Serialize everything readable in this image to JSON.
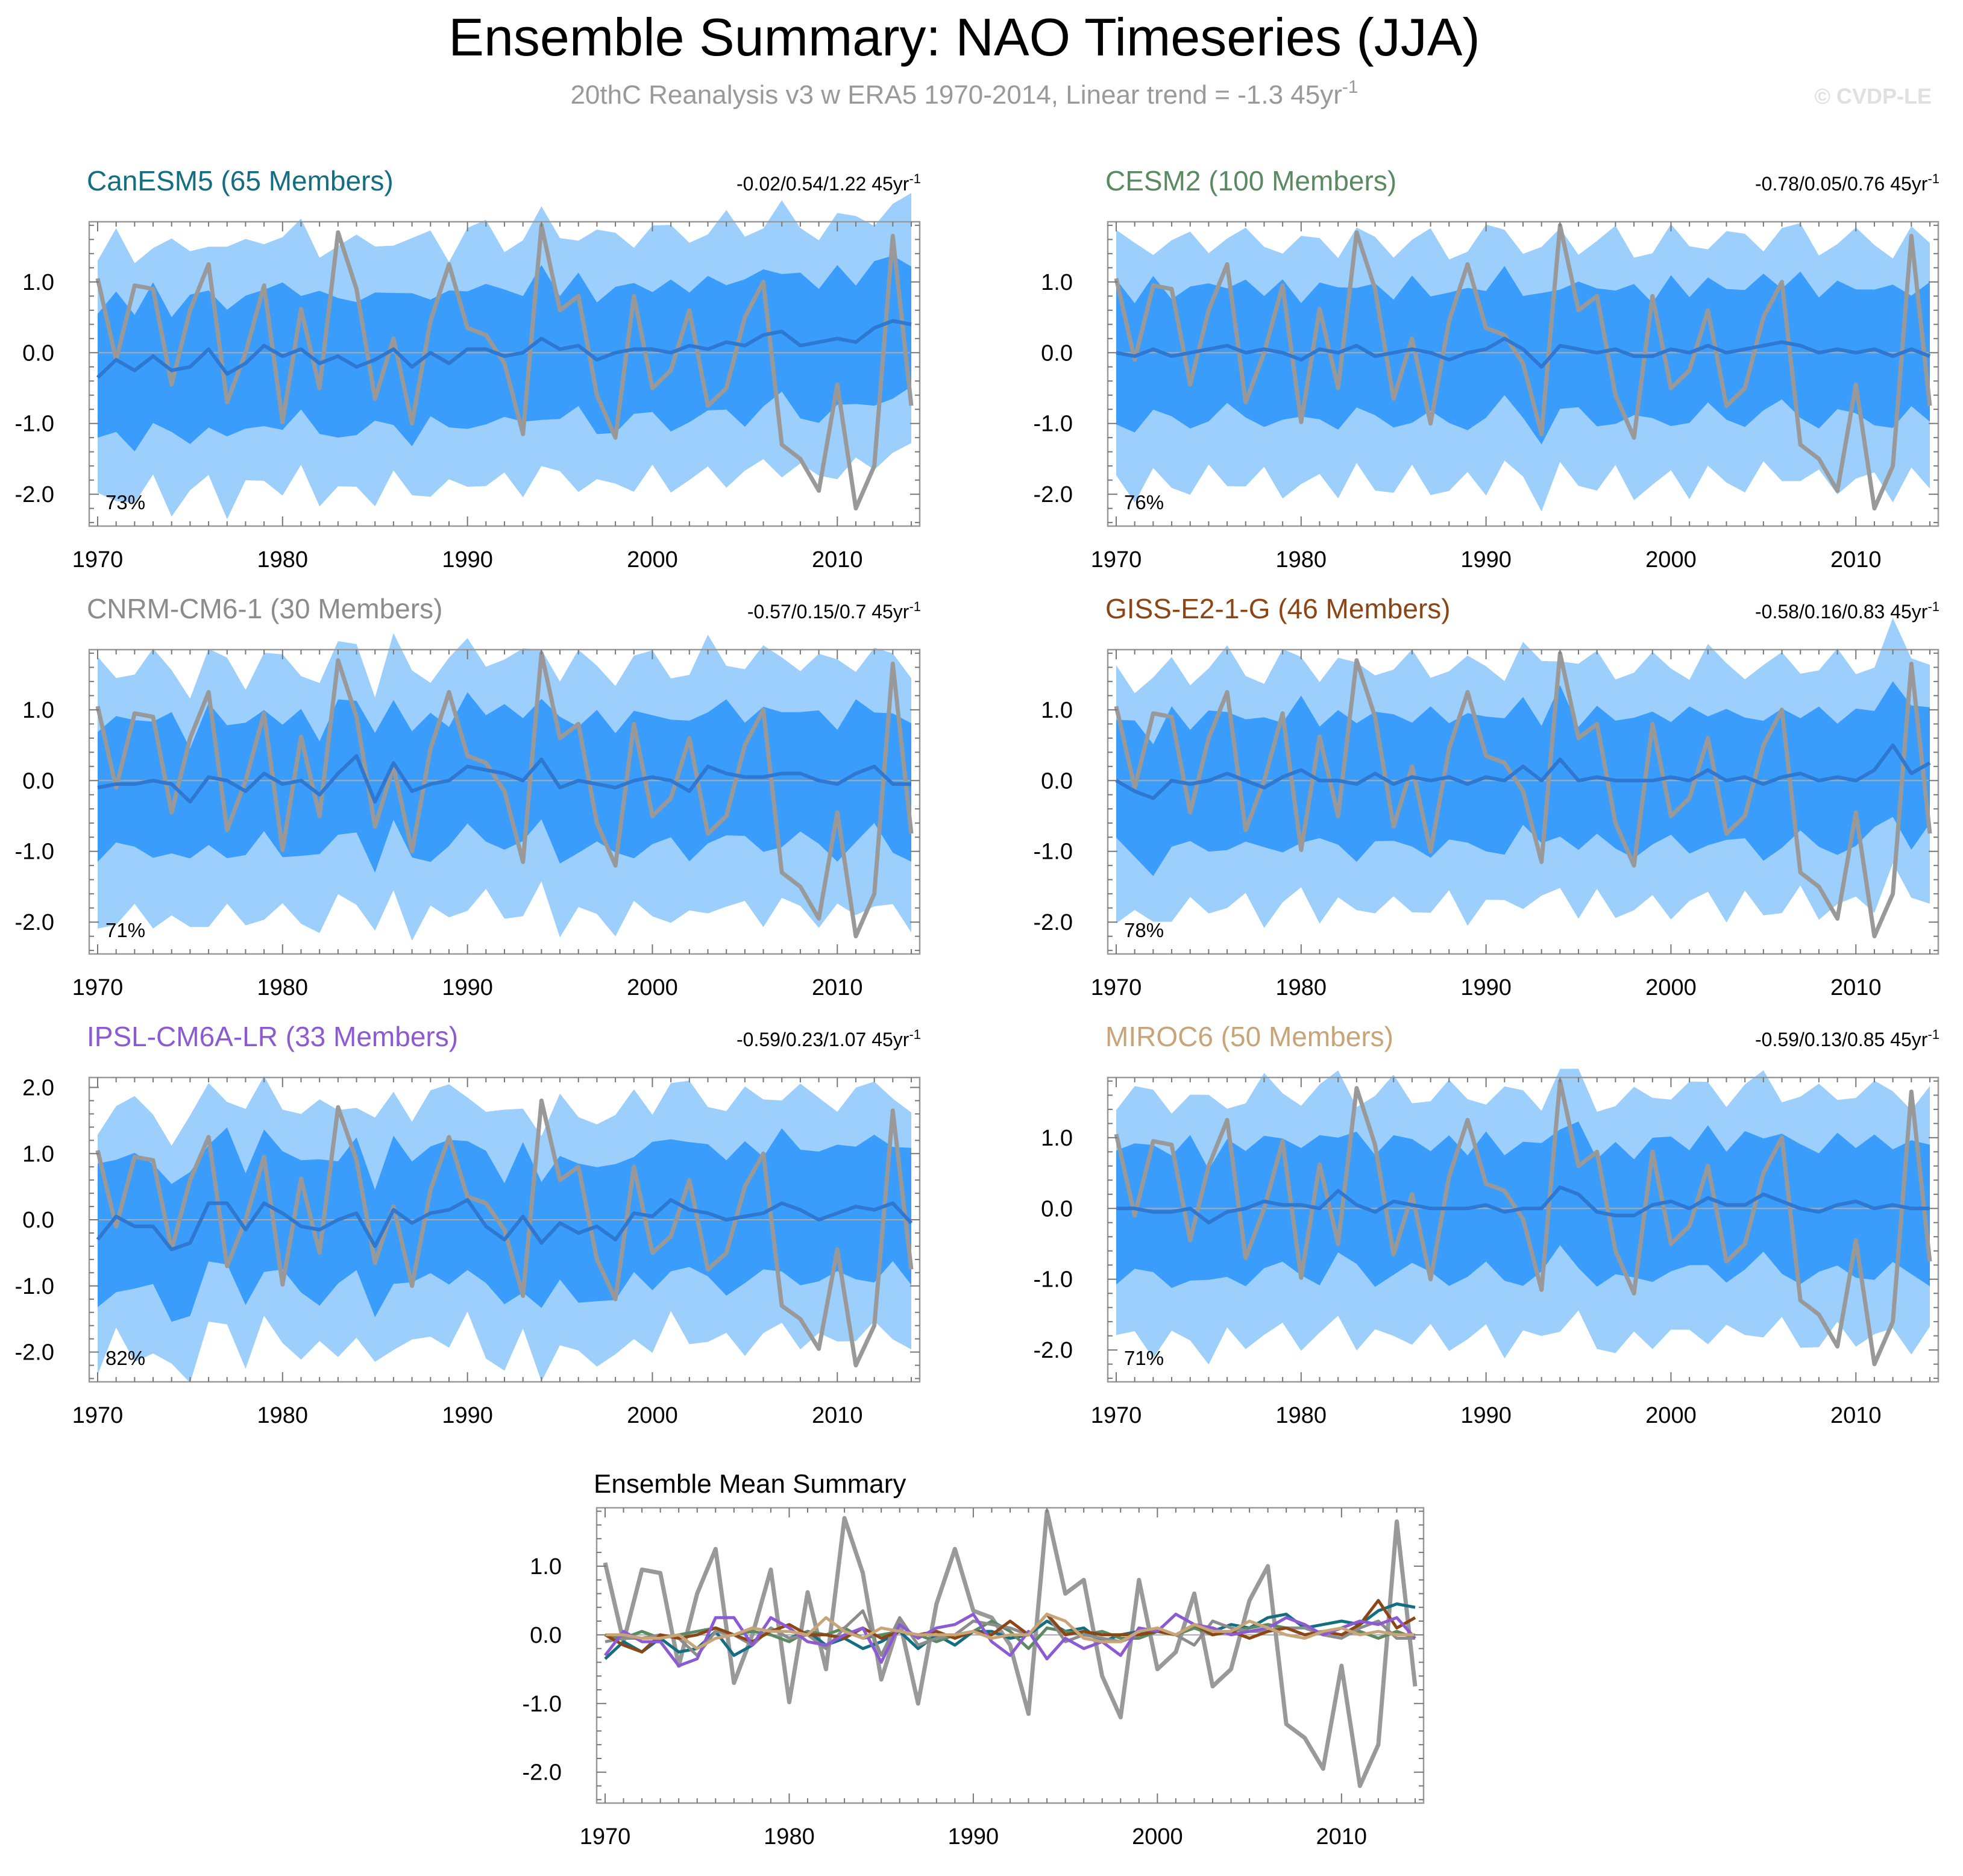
{
  "title": "Ensemble Summary: NAO Timeseries (JJA)",
  "subtitle": {
    "text": "20thC Reanalysis v3 w ERA5 1970-2014, Linear trend = -1.3 45yr",
    "sup": "-1"
  },
  "watermark": "© CVDP-LE",
  "colors": {
    "band_outer": "#9dcffd",
    "band_inner": "#3b9dfb",
    "ens_mean": "#2e78d1",
    "obs": "#999999",
    "zero_line": "#aaaaaa",
    "frame": "#999999",
    "text": "#000000"
  },
  "chart_data": {
    "years": [
      1970,
      1971,
      1972,
      1973,
      1974,
      1975,
      1976,
      1977,
      1978,
      1979,
      1980,
      1981,
      1982,
      1983,
      1984,
      1985,
      1986,
      1987,
      1988,
      1989,
      1990,
      1991,
      1992,
      1993,
      1994,
      1995,
      1996,
      1997,
      1998,
      1999,
      2000,
      2001,
      2002,
      2003,
      2004,
      2005,
      2006,
      2007,
      2008,
      2009,
      2010,
      2011,
      2012,
      2013,
      2014
    ],
    "observed": {
      "name": "20thC Reanalysis v3 w ERA5",
      "values": [
        1.05,
        -0.1,
        0.95,
        0.9,
        -0.45,
        0.6,
        1.25,
        -0.7,
        0.0,
        0.95,
        -0.98,
        0.62,
        -0.5,
        1.7,
        0.9,
        -0.65,
        0.2,
        -1.0,
        0.45,
        1.25,
        0.35,
        0.25,
        -0.15,
        -1.15,
        1.8,
        0.6,
        0.8,
        -0.6,
        -1.2,
        0.8,
        -0.5,
        -0.25,
        0.6,
        -0.75,
        -0.5,
        0.5,
        1.0,
        -1.3,
        -1.5,
        -1.95,
        -0.45,
        -2.2,
        -1.6,
        1.65,
        -0.75
      ]
    },
    "panels": [
      {
        "type": "area",
        "title": "CanESM5 (65 Members)",
        "title_color": "#146e82",
        "stats": "-0.02/0.54/1.22 45yr",
        "stats_sup": "-1",
        "percent": "73%",
        "xlim": [
          1970,
          2014
        ],
        "ylim": [
          -2.45,
          1.85
        ],
        "xticks": [
          "1970",
          "1980",
          "1990",
          "2000",
          "2010"
        ],
        "yticks": [
          "1.0",
          "0.0",
          "-1.0",
          "-2.0"
        ],
        "ens_mean": [
          -0.35,
          -0.1,
          -0.25,
          -0.05,
          -0.25,
          -0.2,
          0.05,
          -0.3,
          -0.15,
          0.1,
          -0.05,
          0.05,
          -0.15,
          -0.05,
          -0.2,
          -0.1,
          0.05,
          -0.2,
          0.0,
          -0.15,
          0.05,
          0.05,
          -0.05,
          0.0,
          0.2,
          0.05,
          0.1,
          -0.1,
          0.0,
          0.05,
          0.05,
          0.0,
          0.1,
          0.05,
          0.15,
          0.1,
          0.25,
          0.3,
          0.1,
          0.15,
          0.2,
          0.15,
          0.35,
          0.45,
          0.4
        ],
        "spread": {
          "inner_low": -1.0,
          "inner_high": 0.9,
          "outer_low": -1.85,
          "outer_high": 1.65
        }
      },
      {
        "type": "area",
        "title": "CESM2 (100 Members)",
        "title_color": "#5b8a62",
        "stats": "-0.78/0.05/0.76 45yr",
        "stats_sup": "-1",
        "percent": "76%",
        "xlim": [
          1970,
          2014
        ],
        "ylim": [
          -2.45,
          1.85
        ],
        "xticks": [
          "1970",
          "1980",
          "1990",
          "2000",
          "2010"
        ],
        "yticks": [
          "1.0",
          "0.0",
          "-1.0",
          "-2.0"
        ],
        "ens_mean": [
          0.0,
          -0.05,
          0.05,
          -0.05,
          0.0,
          0.05,
          0.1,
          0.0,
          0.05,
          0.0,
          -0.1,
          0.05,
          0.0,
          0.1,
          -0.05,
          0.0,
          0.05,
          0.0,
          -0.1,
          0.0,
          0.05,
          0.2,
          0.05,
          -0.2,
          0.1,
          0.05,
          0.0,
          0.05,
          -0.05,
          -0.05,
          0.05,
          0.0,
          0.1,
          0.0,
          0.05,
          0.1,
          0.15,
          0.1,
          0.0,
          0.05,
          0.0,
          0.05,
          -0.05,
          0.05,
          -0.05
        ],
        "spread": {
          "inner_low": -0.95,
          "inner_high": 0.9,
          "outer_low": -1.85,
          "outer_high": 1.55
        }
      },
      {
        "type": "area",
        "title": "CNRM-CM6-1 (30 Members)",
        "title_color": "#8c8c8c",
        "stats": "-0.57/0.15/0.7 45yr",
        "stats_sup": "-1",
        "percent": "71%",
        "xlim": [
          1970,
          2014
        ],
        "ylim": [
          -2.45,
          1.85
        ],
        "xticks": [
          "1970",
          "1980",
          "1990",
          "2000",
          "2010"
        ],
        "yticks": [
          "1.0",
          "0.0",
          "-1.0",
          "-2.0"
        ],
        "ens_mean": [
          -0.1,
          -0.05,
          -0.05,
          0.0,
          -0.05,
          -0.3,
          0.05,
          0.0,
          -0.15,
          0.1,
          -0.05,
          0.0,
          -0.2,
          0.1,
          0.35,
          -0.3,
          0.25,
          -0.15,
          -0.05,
          0.0,
          0.2,
          0.15,
          0.1,
          0.0,
          0.3,
          -0.1,
          0.0,
          -0.05,
          -0.1,
          0.0,
          0.05,
          0.0,
          -0.15,
          0.2,
          0.1,
          0.05,
          0.05,
          0.1,
          0.1,
          0.0,
          -0.05,
          0.1,
          0.2,
          -0.05,
          -0.05
        ],
        "spread": {
          "inner_low": -0.95,
          "inner_high": 0.9,
          "outer_low": -1.9,
          "outer_high": 1.65
        }
      },
      {
        "type": "area",
        "title": "GISS-E2-1-G (46 Members)",
        "title_color": "#8c4615",
        "stats": "-0.58/0.16/0.83 45yr",
        "stats_sup": "-1",
        "percent": "78%",
        "xlim": [
          1970,
          2014
        ],
        "ylim": [
          -2.45,
          1.85
        ],
        "xticks": [
          "1970",
          "1980",
          "1990",
          "2000",
          "2010"
        ],
        "yticks": [
          "1.0",
          "0.0",
          "-1.0",
          "-2.0"
        ],
        "ens_mean": [
          0.0,
          -0.15,
          -0.25,
          0.0,
          -0.05,
          0.0,
          0.1,
          0.0,
          -0.1,
          0.05,
          0.15,
          0.0,
          0.0,
          -0.05,
          0.1,
          -0.05,
          0.05,
          0.0,
          0.05,
          -0.05,
          0.05,
          0.0,
          0.2,
          0.0,
          0.3,
          0.0,
          0.05,
          0.0,
          0.0,
          0.0,
          0.05,
          0.0,
          0.15,
          0.0,
          0.05,
          -0.05,
          0.05,
          0.1,
          0.0,
          0.05,
          0.0,
          0.15,
          0.5,
          0.1,
          0.25
        ],
        "spread": {
          "inner_low": -0.95,
          "inner_high": 0.9,
          "outer_low": -1.8,
          "outer_high": 1.6
        }
      },
      {
        "type": "area",
        "title": "IPSL-CM6A-LR (33 Members)",
        "title_color": "#8c5ad2",
        "stats": "-0.59/0.23/1.07 45yr",
        "stats_sup": "-1",
        "percent": "82%",
        "xlim": [
          1970,
          2014
        ],
        "ylim": [
          -2.45,
          2.15
        ],
        "xticks": [
          "1970",
          "1980",
          "1990",
          "2000",
          "2010"
        ],
        "yticks": [
          "2.0",
          "1.0",
          "0.0",
          "-1.0",
          "-2.0"
        ],
        "ens_mean": [
          -0.3,
          0.05,
          -0.1,
          -0.1,
          -0.45,
          -0.35,
          0.25,
          0.25,
          -0.15,
          0.25,
          0.1,
          -0.1,
          -0.15,
          0.0,
          0.1,
          -0.4,
          0.15,
          -0.05,
          0.1,
          0.15,
          0.3,
          -0.1,
          -0.3,
          0.05,
          -0.35,
          -0.05,
          -0.2,
          -0.1,
          -0.3,
          0.1,
          0.05,
          0.3,
          0.15,
          0.1,
          0.0,
          0.05,
          0.1,
          0.25,
          0.15,
          0.0,
          0.1,
          0.2,
          0.15,
          0.25,
          -0.05
        ],
        "spread": {
          "inner_low": -1.0,
          "inner_high": 1.0,
          "outer_low": -1.9,
          "outer_high": 1.75
        }
      },
      {
        "type": "area",
        "title": "MIROC6 (50 Members)",
        "title_color": "#c8a578",
        "stats": "-0.59/0.13/0.85 45yr",
        "stats_sup": "-1",
        "percent": "71%",
        "xlim": [
          1970,
          2014
        ],
        "ylim": [
          -2.45,
          1.85
        ],
        "xticks": [
          "1970",
          "1980",
          "1990",
          "2000",
          "2010"
        ],
        "yticks": [
          "1.0",
          "0.0",
          "-1.0",
          "-2.0"
        ],
        "ens_mean": [
          0.0,
          0.0,
          -0.05,
          -0.05,
          0.0,
          -0.2,
          -0.05,
          0.0,
          0.1,
          0.05,
          0.05,
          0.0,
          0.25,
          0.05,
          -0.05,
          0.1,
          0.05,
          0.0,
          0.0,
          0.0,
          0.05,
          -0.05,
          0.0,
          0.0,
          0.3,
          0.2,
          -0.05,
          -0.1,
          -0.1,
          0.05,
          0.1,
          0.0,
          0.15,
          0.05,
          0.05,
          0.2,
          0.1,
          0.0,
          -0.05,
          0.05,
          0.1,
          0.0,
          0.05,
          0.0,
          0.0
        ],
        "spread": {
          "inner_low": -0.95,
          "inner_high": 0.9,
          "outer_low": -1.85,
          "outer_high": 1.6
        }
      },
      {
        "type": "line",
        "title": "Ensemble Mean Summary",
        "xlim": [
          1970,
          2014
        ],
        "ylim": [
          -2.45,
          1.85
        ],
        "xticks": [
          "1970",
          "1980",
          "1990",
          "2000",
          "2010"
        ],
        "yticks": [
          "1.0",
          "0.0",
          "-1.0",
          "-2.0"
        ],
        "series": [
          "observed",
          "CanESM5",
          "CESM2",
          "CNRM-CM6-1",
          "GISS-E2-1-G",
          "IPSL-CM6A-LR",
          "MIROC6"
        ]
      }
    ]
  }
}
